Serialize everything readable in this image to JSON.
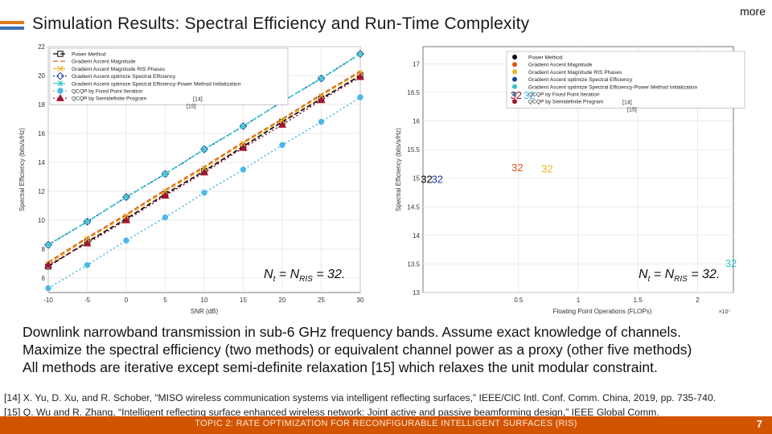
{
  "slide": {
    "title": "Simulation Results: Spectral Efficiency and Run-Time Complexity",
    "more_link": "more",
    "accent_color": "#e07a1f",
    "accent_color_2": "#3b6fb5",
    "bullets": [
      "Downlink narrowband transmission in sub-6 GHz frequency bands.  Assume exact knowledge of channels.",
      "Maximize the spectral efficiency (two methods) or equivalent channel power as a proxy (other five methods)",
      "All methods are iterative except semi-definite relaxation [15] which relaxes the unit modular constraint."
    ],
    "references": [
      "[14] X. Yu, D. Xu, and R. Schober, “MISO wireless communication systems via intelligent reflecting surfaces,” IEEE/CIC Intl. Conf. Comm. China, 2019, pp. 735-740.",
      "[15] Q. Wu and R. Zhang, “Intelligent reflecting surface enhanced wireless network: Joint active and passive beamforming design,” IEEE Global Comm."
    ],
    "footer_text": "TOPIC 2: RATE OPTIMIZATION FOR RECONFIGURABLE INTELLIGENT SURFACES (RIS)",
    "page_number": "7",
    "footer_color": "#d35400"
  },
  "chart_data": [
    {
      "type": "line",
      "xlabel": "SNR (dB)",
      "ylabel": "Spectral Efficiency (bits/s/Hz)",
      "x": [
        -10,
        -5,
        0,
        5,
        10,
        15,
        20,
        25,
        30
      ],
      "xlim": [
        -10,
        30
      ],
      "ylim": [
        5,
        22
      ],
      "xticks": [
        "-10",
        "-5",
        "0",
        "5",
        "10",
        "15",
        "20",
        "25",
        "30"
      ],
      "yticks": [
        "6",
        "8",
        "10",
        "12",
        "14",
        "16",
        "18",
        "20",
        "22"
      ],
      "grid": true,
      "legend_position": "top-left",
      "annotation": "N_t = N_RIS = 32.",
      "ref_labels": [
        "[14]",
        "[15]"
      ],
      "series": [
        {
          "name": "Power Method",
          "color": "#000000",
          "dash": "6,3",
          "marker": "square",
          "values": [
            6.8,
            8.5,
            10.1,
            11.8,
            13.4,
            15.1,
            16.8,
            18.4,
            20.0
          ]
        },
        {
          "name": "Gradient Ascent Magnitude",
          "color": "#d95319",
          "dash": "6,3",
          "marker": "none",
          "values": [
            7.1,
            8.8,
            10.4,
            12.1,
            13.7,
            15.4,
            17.0,
            18.7,
            20.3
          ]
        },
        {
          "name": "Gradient Ascent Magnitude RIS Phases",
          "color": "#edb120",
          "dash": "6,3",
          "marker": "x",
          "values": [
            7.0,
            8.7,
            10.3,
            12.0,
            13.6,
            15.3,
            16.9,
            18.6,
            20.2
          ]
        },
        {
          "name": "Gradient Ascent optimize Spectral Efficiency",
          "color": "#1f3fa0",
          "dash": "2,3",
          "marker": "diamond",
          "values": [
            8.3,
            9.9,
            11.6,
            13.2,
            14.9,
            16.5,
            18.2,
            19.8,
            21.5
          ]
        },
        {
          "name": "Gradient Ascent optimize Spectral Efficiency-Power Method Initialization",
          "color": "#2ec7c9",
          "dash": "6,3",
          "marker": "star",
          "values": [
            8.3,
            9.9,
            11.6,
            13.2,
            14.9,
            16.5,
            18.2,
            19.8,
            21.5
          ]
        },
        {
          "name": "QCQP by Fixed Point Iteration",
          "color": "#4db8e8",
          "dash": "2,3",
          "marker": "circle",
          "values": [
            5.3,
            6.9,
            8.6,
            10.2,
            11.9,
            13.5,
            15.2,
            16.8,
            18.5
          ]
        },
        {
          "name": "QCQP by Semidefinite Program",
          "color": "#a2142f",
          "dash": "2,3",
          "marker": "triangle",
          "values": [
            6.9,
            8.4,
            10.0,
            11.7,
            13.3,
            15.0,
            16.6,
            18.3,
            19.9
          ]
        }
      ]
    },
    {
      "type": "scatter",
      "xlabel": "Floating Point Operations (FLOPs)",
      "ylabel": "Spectral Efficiency (bits/s/Hz)",
      "x_multiplier": "×10⁷",
      "xlim": [
        -0.3,
        2.3
      ],
      "ylim": [
        13.0,
        17.3
      ],
      "xticks": [
        "0.5",
        "1",
        "1.5",
        "2"
      ],
      "yticks": [
        "13",
        "13.5",
        "14",
        "14.5",
        "15",
        "15.5",
        "16",
        "16.5",
        "17"
      ],
      "grid": true,
      "legend_position": "top-right",
      "annotation": "N_t = N_RIS = 32.",
      "ref_labels": [
        "[14]",
        "[15]"
      ],
      "points": [
        {
          "name": "Power Method",
          "color": "#000000",
          "x": -0.27,
          "y": 14.99,
          "label": "32"
        },
        {
          "name": "Gradient Ascent Magnitude",
          "color": "#d95319",
          "x": 0.49,
          "y": 15.19,
          "label": "32"
        },
        {
          "name": "Gradient Ascent Magnitude RIS Phases",
          "color": "#edb120",
          "x": 0.74,
          "y": 15.17,
          "label": "32"
        },
        {
          "name": "Gradient Ascent optimize Spectral Efficiency",
          "color": "#1f3fa0",
          "x": -0.18,
          "y": 14.99,
          "label": "32"
        },
        {
          "name": "Gradient Ascent optimize Spectral Efficiency-Power Method Initialization",
          "color": "#2ec7c9",
          "x": 2.28,
          "y": 13.52,
          "label": "32"
        },
        {
          "name": "QCQP by Fixed Point Iteration",
          "color": "#4db8e8",
          "x": 0.59,
          "y": 16.46,
          "label": "32"
        },
        {
          "name": "QCQP by Semidefinite Program",
          "color": "#a2142f",
          "x": 0.48,
          "y": 16.46,
          "label": "32"
        }
      ]
    }
  ]
}
